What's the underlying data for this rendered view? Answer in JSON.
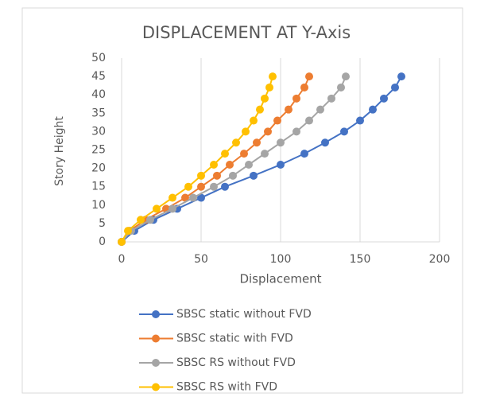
{
  "chart_data": {
    "type": "scatter_line",
    "title": "DISPLACEMENT AT Y-Axis",
    "x_label": "Displacement",
    "y_label": "Story Height",
    "xlim": [
      0,
      200
    ],
    "xticks": [
      0,
      50,
      100,
      150,
      200
    ],
    "ylim": [
      0,
      50
    ],
    "yticks": [
      0,
      5,
      10,
      15,
      20,
      25,
      30,
      35,
      40,
      45,
      50
    ],
    "grid": "x",
    "legend": "bottom",
    "series": [
      {
        "name": "SBSC static without FVD",
        "color": "#4472c4",
        "x": [
          0,
          8,
          20,
          35,
          50,
          65,
          83,
          100,
          115,
          128,
          140,
          150,
          158,
          165,
          172,
          176
        ],
        "values": [
          0,
          3,
          6,
          9,
          12,
          15,
          18,
          21,
          24,
          27,
          30,
          33,
          36,
          39,
          42,
          45
        ]
      },
      {
        "name": "SBSC static with FVD",
        "color": "#ed7d31",
        "x": [
          0,
          5,
          15,
          28,
          40,
          50,
          60,
          68,
          77,
          85,
          92,
          98,
          105,
          110,
          115,
          118
        ],
        "values": [
          0,
          3,
          6,
          9,
          12,
          15,
          18,
          21,
          24,
          27,
          30,
          33,
          36,
          39,
          42,
          45
        ]
      },
      {
        "name": "SBSC RS without FVD",
        "color": "#a5a5a5",
        "x": [
          0,
          6,
          18,
          32,
          45,
          58,
          70,
          80,
          90,
          100,
          110,
          118,
          125,
          132,
          138,
          141
        ],
        "values": [
          0,
          3,
          6,
          9,
          12,
          15,
          18,
          21,
          24,
          27,
          30,
          33,
          36,
          39,
          42,
          45
        ]
      },
      {
        "name": "SBSC RS with FVD",
        "color": "#ffc000",
        "x": [
          0,
          4,
          12,
          22,
          32,
          42,
          50,
          58,
          65,
          72,
          78,
          83,
          87,
          90,
          93,
          95
        ],
        "values": [
          0,
          3,
          6,
          9,
          12,
          15,
          18,
          21,
          24,
          27,
          30,
          33,
          36,
          39,
          42,
          45
        ]
      }
    ]
  }
}
